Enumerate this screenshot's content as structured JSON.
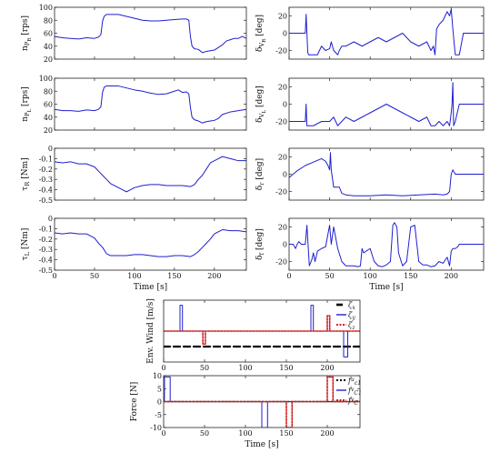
{
  "chart_data": [
    {
      "type": "line",
      "id": "nPR",
      "ylabel": "n_{P_R} [rps]",
      "xlim": [
        0,
        240
      ],
      "ylim": [
        20,
        100
      ],
      "xticks": [
        0,
        50,
        100,
        150,
        200
      ],
      "yticks": [
        20,
        40,
        60,
        80,
        100
      ],
      "xticklabels": false,
      "xlabel": "",
      "series": [
        {
          "color": "#1f1fd0",
          "x": [
            0,
            10,
            20,
            30,
            40,
            50,
            55,
            58,
            60,
            62,
            65,
            70,
            80,
            90,
            100,
            110,
            120,
            130,
            140,
            150,
            160,
            165,
            168,
            170,
            172,
            175,
            180,
            185,
            190,
            195,
            200,
            205,
            210,
            215,
            220,
            225,
            230,
            235,
            240
          ],
          "y": [
            55,
            53,
            52,
            51,
            53,
            52,
            54,
            58,
            78,
            86,
            89,
            89,
            89,
            86,
            83,
            80,
            79,
            79,
            80,
            81,
            82,
            82,
            80,
            55,
            40,
            36,
            35,
            30,
            32,
            33,
            34,
            38,
            42,
            48,
            50,
            52,
            52,
            55,
            52
          ]
        }
      ]
    },
    {
      "type": "line",
      "id": "nPL",
      "ylabel": "n_{P_L} [rps]",
      "xlim": [
        0,
        240
      ],
      "ylim": [
        20,
        100
      ],
      "xticks": [
        0,
        50,
        100,
        150,
        200
      ],
      "yticks": [
        20,
        40,
        60,
        80,
        100
      ],
      "xticklabels": false,
      "xlabel": "",
      "series": [
        {
          "color": "#1f1fd0",
          "x": [
            0,
            10,
            20,
            30,
            40,
            50,
            55,
            58,
            60,
            62,
            65,
            70,
            80,
            90,
            100,
            110,
            120,
            130,
            140,
            150,
            155,
            160,
            165,
            168,
            170,
            172,
            175,
            180,
            185,
            190,
            195,
            200,
            205,
            210,
            220,
            230,
            240
          ],
          "y": [
            52,
            50,
            50,
            49,
            51,
            50,
            52,
            56,
            78,
            86,
            88,
            88,
            88,
            85,
            82,
            80,
            77,
            75,
            76,
            80,
            82,
            78,
            79,
            76,
            55,
            40,
            36,
            34,
            31,
            33,
            34,
            35,
            38,
            44,
            48,
            50,
            52
          ]
        }
      ]
    },
    {
      "type": "line",
      "id": "tauR",
      "ylabel": "τ_R [Nm]",
      "xlim": [
        0,
        240
      ],
      "ylim": [
        -0.5,
        0
      ],
      "xticks": [
        0,
        50,
        100,
        150,
        200
      ],
      "yticks": [
        0,
        -0.1,
        -0.2,
        -0.3,
        -0.4,
        -0.5
      ],
      "xticklabels": false,
      "xlabel": "",
      "series": [
        {
          "color": "#1f1fd0",
          "x": [
            0,
            10,
            20,
            30,
            40,
            50,
            55,
            60,
            65,
            70,
            75,
            80,
            85,
            90,
            95,
            100,
            110,
            120,
            130,
            140,
            150,
            160,
            170,
            175,
            180,
            185,
            190,
            195,
            200,
            205,
            210,
            220,
            230,
            240
          ],
          "y": [
            -0.13,
            -0.14,
            -0.13,
            -0.15,
            -0.15,
            -0.18,
            -0.22,
            -0.26,
            -0.3,
            -0.34,
            -0.36,
            -0.38,
            -0.4,
            -0.42,
            -0.4,
            -0.38,
            -0.36,
            -0.35,
            -0.35,
            -0.36,
            -0.36,
            -0.36,
            -0.37,
            -0.35,
            -0.3,
            -0.26,
            -0.2,
            -0.14,
            -0.12,
            -0.1,
            -0.08,
            -0.1,
            -0.12,
            -0.12
          ]
        }
      ]
    },
    {
      "type": "line",
      "id": "tauL",
      "ylabel": "τ_L [Nm]",
      "xlim": [
        0,
        240
      ],
      "ylim": [
        -0.5,
        0
      ],
      "xticks": [
        0,
        50,
        100,
        150,
        200
      ],
      "yticks": [
        0,
        -0.1,
        -0.2,
        -0.3,
        -0.4,
        -0.5
      ],
      "xticklabels": true,
      "xlabel": "Time [s]",
      "series": [
        {
          "color": "#1f1fd0",
          "x": [
            0,
            10,
            20,
            30,
            40,
            50,
            55,
            60,
            65,
            70,
            80,
            90,
            100,
            110,
            120,
            130,
            140,
            150,
            160,
            170,
            175,
            180,
            185,
            190,
            195,
            200,
            205,
            210,
            220,
            230,
            240
          ],
          "y": [
            -0.14,
            -0.15,
            -0.14,
            -0.15,
            -0.15,
            -0.19,
            -0.24,
            -0.28,
            -0.34,
            -0.36,
            -0.36,
            -0.36,
            -0.35,
            -0.35,
            -0.36,
            -0.37,
            -0.37,
            -0.36,
            -0.36,
            -0.37,
            -0.35,
            -0.32,
            -0.28,
            -0.24,
            -0.2,
            -0.15,
            -0.13,
            -0.11,
            -0.12,
            -0.12,
            -0.13
          ]
        }
      ]
    },
    {
      "type": "line",
      "id": "dVR",
      "ylabel": "δ_{V_R} [deg]",
      "xlim": [
        0,
        240
      ],
      "ylim": [
        -30,
        30
      ],
      "xticks": [
        0,
        50,
        100,
        150,
        200
      ],
      "yticks": [
        -20,
        0,
        20
      ],
      "xticklabels": false,
      "xlabel": "",
      "series": [
        {
          "color": "#1f1fd0",
          "x": [
            0,
            10,
            20,
            21,
            22,
            23,
            24,
            28,
            35,
            40,
            45,
            50,
            52,
            55,
            60,
            62,
            65,
            70,
            80,
            90,
            100,
            110,
            120,
            130,
            140,
            150,
            160,
            170,
            175,
            178,
            180,
            182,
            185,
            190,
            195,
            198,
            200,
            202,
            205,
            210,
            215,
            220,
            230,
            240
          ],
          "y": [
            0,
            0,
            0,
            22,
            0,
            -22,
            -25,
            -25,
            -25,
            -15,
            -20,
            -18,
            -10,
            -20,
            -25,
            -20,
            -15,
            -15,
            -10,
            -15,
            -10,
            -5,
            -10,
            -5,
            0,
            -10,
            -15,
            -10,
            -20,
            -15,
            -25,
            5,
            10,
            15,
            25,
            20,
            28,
            5,
            -25,
            -25,
            0,
            0,
            0,
            0
          ]
        }
      ]
    },
    {
      "type": "line",
      "id": "dVL",
      "ylabel": "δ_{V_L} [deg]",
      "xlim": [
        0,
        240
      ],
      "ylim": [
        -30,
        30
      ],
      "xticks": [
        0,
        50,
        100,
        150,
        200
      ],
      "yticks": [
        -20,
        0,
        20
      ],
      "xticklabels": false,
      "xlabel": "",
      "series": [
        {
          "color": "#1f1fd0",
          "x": [
            0,
            10,
            20,
            21,
            22,
            25,
            30,
            40,
            50,
            55,
            60,
            65,
            70,
            80,
            90,
            100,
            110,
            120,
            130,
            140,
            150,
            160,
            170,
            175,
            180,
            185,
            190,
            195,
            198,
            200,
            201,
            202,
            203,
            205,
            210,
            220,
            230,
            240
          ],
          "y": [
            -20,
            -20,
            -20,
            0,
            -25,
            -25,
            -25,
            -20,
            -20,
            -15,
            -25,
            -20,
            -15,
            -20,
            -15,
            -10,
            -5,
            0,
            -5,
            -10,
            -15,
            -20,
            -15,
            -25,
            -25,
            -20,
            -25,
            -20,
            -25,
            -10,
            0,
            25,
            -25,
            -20,
            0,
            0,
            0,
            0
          ]
        }
      ]
    },
    {
      "type": "line",
      "id": "dr",
      "ylabel": "δ_r [deg]",
      "xlim": [
        0,
        240
      ],
      "ylim": [
        -30,
        30
      ],
      "xticks": [
        0,
        50,
        100,
        150,
        200
      ],
      "yticks": [
        -20,
        0,
        20
      ],
      "xticklabels": false,
      "xlabel": "",
      "series": [
        {
          "color": "#1f1fd0",
          "x": [
            0,
            5,
            10,
            20,
            30,
            40,
            45,
            48,
            50,
            51,
            52,
            55,
            60,
            62,
            65,
            70,
            80,
            100,
            120,
            140,
            160,
            180,
            190,
            195,
            198,
            200,
            202,
            205,
            210,
            220,
            230,
            240
          ],
          "y": [
            -4,
            0,
            4,
            10,
            14,
            18,
            15,
            10,
            5,
            25,
            5,
            -15,
            -15,
            -15,
            -22,
            -24,
            -25,
            -25,
            -24,
            -25,
            -24,
            -23,
            -24,
            -23,
            -20,
            0,
            5,
            0,
            0,
            0,
            0,
            0
          ]
        }
      ]
    },
    {
      "type": "line",
      "id": "df",
      "ylabel": "δ_f [deg]",
      "xlim": [
        0,
        240
      ],
      "ylim": [
        -30,
        30
      ],
      "xticks": [
        0,
        50,
        100,
        150,
        200
      ],
      "yticks": [
        -20,
        0,
        20
      ],
      "xticklabels": true,
      "xlabel": "Time [s]",
      "series": [
        {
          "color": "#1f1fd0",
          "x": [
            0,
            5,
            8,
            10,
            12,
            15,
            20,
            22,
            25,
            28,
            30,
            32,
            35,
            40,
            45,
            50,
            52,
            55,
            60,
            65,
            70,
            80,
            85,
            88,
            90,
            92,
            95,
            100,
            105,
            110,
            115,
            120,
            125,
            128,
            130,
            133,
            135,
            140,
            145,
            150,
            155,
            160,
            165,
            170,
            175,
            180,
            185,
            190,
            195,
            198,
            200,
            202,
            205,
            208,
            210,
            220,
            230,
            240
          ],
          "y": [
            0,
            0,
            -5,
            0,
            3,
            0,
            0,
            22,
            -25,
            -18,
            -10,
            -20,
            -8,
            -5,
            -3,
            22,
            0,
            20,
            -5,
            -20,
            -25,
            -25,
            -26,
            -25,
            -5,
            -10,
            -8,
            -5,
            -20,
            -25,
            -26,
            -24,
            -20,
            22,
            25,
            20,
            -10,
            -25,
            -20,
            20,
            22,
            -20,
            -24,
            -24,
            -26,
            -25,
            -20,
            -22,
            -15,
            -25,
            -8,
            -5,
            -5,
            -3,
            0,
            0,
            0,
            0
          ]
        }
      ]
    },
    {
      "type": "line",
      "id": "wind",
      "ylabel": "Env. Wind [m/s]",
      "xlim": [
        0,
        240
      ],
      "ylim": [
        -6,
        6
      ],
      "xticks": [
        0,
        50,
        100,
        150,
        200
      ],
      "yticks": [],
      "xticklabels": true,
      "xlabel": "",
      "legend_position": "right",
      "series": [
        {
          "name": "ζ_x",
          "color": "#000000",
          "dash": "7,4",
          "width": 2.2,
          "x": [
            0,
            240
          ],
          "y": [
            -3,
            -3
          ]
        },
        {
          "name": "ζ_y",
          "color": "#1f1fd0",
          "dash": "",
          "width": 1.0,
          "x": [
            0,
            20,
            20,
            23,
            23,
            180,
            180,
            183,
            183,
            220,
            220,
            225,
            225,
            240
          ],
          "y": [
            0,
            0,
            5,
            5,
            0,
            0,
            5,
            5,
            0,
            0,
            -5,
            -5,
            0,
            0
          ]
        },
        {
          "name": "ζ_z",
          "color": "#d01f1f",
          "dash": "2,1.5",
          "width": 1.6,
          "x": [
            0,
            48,
            48,
            51,
            51,
            200,
            200,
            203,
            203,
            240
          ],
          "y": [
            0,
            0,
            -2.5,
            -2.5,
            0,
            0,
            3,
            3,
            0,
            0
          ]
        }
      ]
    },
    {
      "type": "line",
      "id": "force",
      "ylabel": "Force [N]",
      "xlim": [
        0,
        240
      ],
      "ylim": [
        -10,
        10
      ],
      "xticks": [
        0,
        50,
        100,
        150,
        200
      ],
      "yticks": [
        -10,
        -5,
        0,
        5,
        10
      ],
      "xticklabels": true,
      "xlabel": "Time [s]",
      "legend_position": "right",
      "series": [
        {
          "name": "f^u_{c1}",
          "color": "#000000",
          "dash": "2,2",
          "width": 1.6,
          "x": [
            0,
            240
          ],
          "y": [
            0,
            0
          ]
        },
        {
          "name": "f^v_{C1}",
          "color": "#1f1fd0",
          "dash": "",
          "width": 1.0,
          "x": [
            0,
            1,
            1,
            8,
            8,
            120,
            120,
            127,
            127,
            240
          ],
          "y": [
            0,
            0,
            9.5,
            9.5,
            0,
            0,
            -10,
            -10,
            0,
            0
          ]
        },
        {
          "name": "f^v_{C}",
          "color": "#d01f1f",
          "dash": "2,1.5",
          "width": 1.6,
          "x": [
            0,
            150,
            150,
            157,
            157,
            200,
            200,
            207,
            207,
            240
          ],
          "y": [
            0,
            0,
            -10,
            -10,
            0,
            0,
            9.5,
            9.5,
            0,
            0
          ]
        }
      ]
    }
  ]
}
